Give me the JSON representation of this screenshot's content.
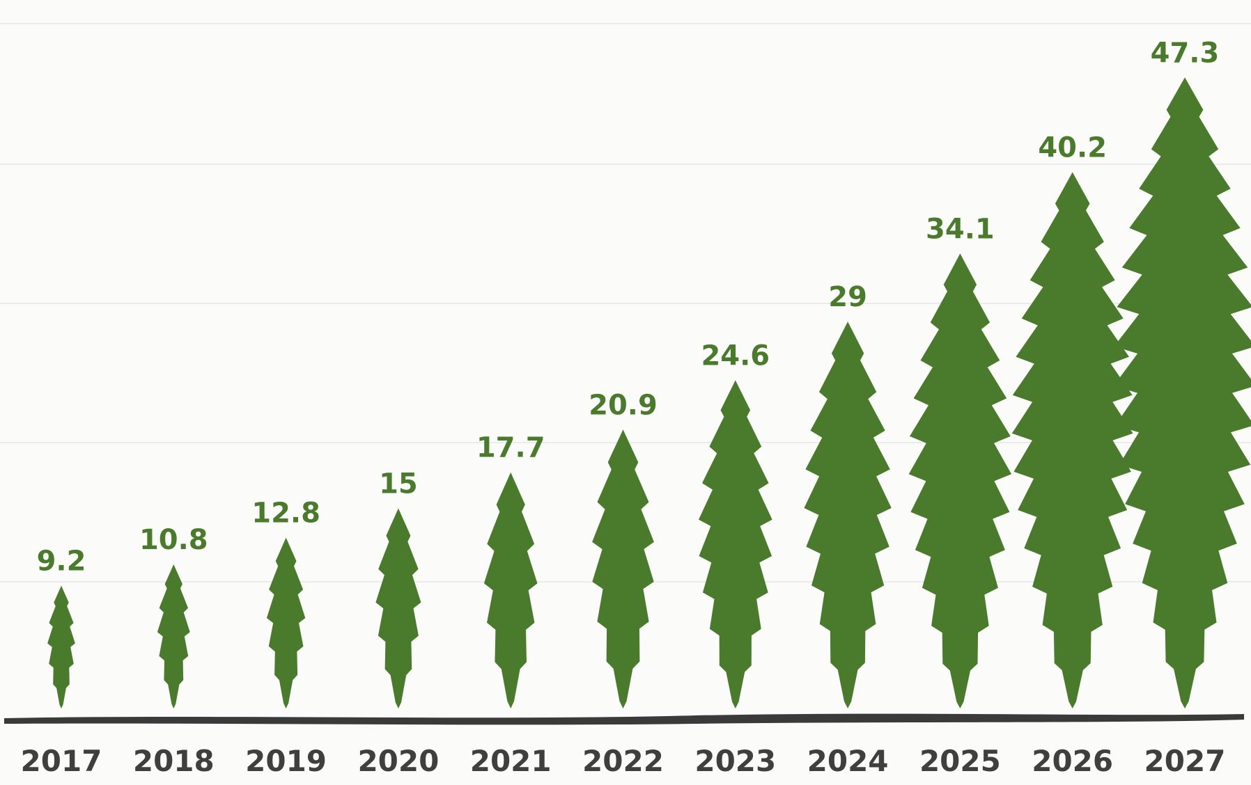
{
  "chart_data": {
    "type": "bar",
    "categories": [
      "2017",
      "2018",
      "2019",
      "2020",
      "2021",
      "2022",
      "2023",
      "2024",
      "2025",
      "2026",
      "2027"
    ],
    "values": [
      9.2,
      10.8,
      12.8,
      15,
      17.7,
      20.9,
      24.6,
      29,
      34.1,
      40.2,
      47.3
    ],
    "value_labels": [
      "9.2",
      "10.8",
      "12.8",
      "15",
      "17.7",
      "20.9",
      "24.6",
      "29",
      "34.1",
      "40.2",
      "47.3"
    ],
    "mark_shape": "cannabis-leaf",
    "grid": true,
    "colors": {
      "leaf": "#4a7a2c",
      "value_label": "#4a7a2c",
      "category_label": "#3f3f3f",
      "baseline": "#3a3a3a",
      "gridline": "#ebebea",
      "background": "#fbfbf9"
    }
  }
}
